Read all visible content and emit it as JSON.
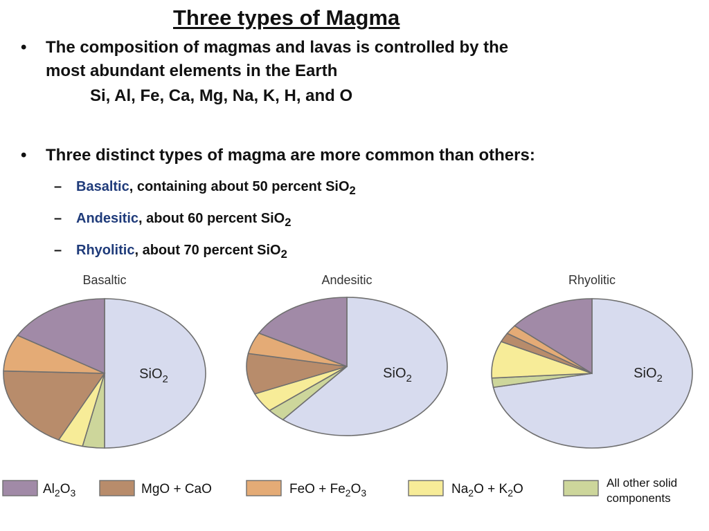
{
  "title": "Three types of Magma",
  "bullet1": {
    "line1": "The composition of magmas and lavas is controlled by the",
    "line2": "most abundant elements in the Earth",
    "elements": "Si, Al, Fe, Ca, Mg, Na, K, H, and O"
  },
  "bullet2": {
    "text": "Three distinct types of magma are more common than others:",
    "items": [
      {
        "name": "Basaltic",
        "rest": ", containing about 50 percent SiO",
        "sub": "2"
      },
      {
        "name": "Andesitic",
        "rest": ", about 60 percent SiO",
        "sub": "2"
      },
      {
        "name": "Rhyolitic",
        "rest": ", about 70 percent SiO",
        "sub": "2"
      }
    ]
  },
  "bullet_glyph": "•",
  "dash_glyph": "–",
  "chart_data": [
    {
      "type": "pie",
      "title": "Basaltic",
      "label": {
        "main": "SiO",
        "sub": "2"
      },
      "slices": [
        {
          "component": "SiO2",
          "value": 50,
          "color": "#d7dbee"
        },
        {
          "component": "All other solid components",
          "value": 3.5,
          "color": "#cdd69b"
        },
        {
          "component": "Na2O + K2O",
          "value": 4,
          "color": "#f7ec98"
        },
        {
          "component": "MgO + CaO",
          "value": 18,
          "color": "#b88c6b"
        },
        {
          "component": "FeO + Fe2O3",
          "value": 8,
          "color": "#e4ab76"
        },
        {
          "component": "Al2O3",
          "value": 16.5,
          "color": "#a18aa7"
        }
      ]
    },
    {
      "type": "pie",
      "title": "Andesitic",
      "label": {
        "main": "SiO",
        "sub": "2"
      },
      "slices": [
        {
          "component": "SiO2",
          "value": 61,
          "color": "#d7dbee"
        },
        {
          "component": "All other solid components",
          "value": 3,
          "color": "#cdd69b"
        },
        {
          "component": "Na2O + K2O",
          "value": 4.5,
          "color": "#f7ec98"
        },
        {
          "component": "MgO + CaO",
          "value": 9.5,
          "color": "#b88c6b"
        },
        {
          "component": "FeO + Fe2O3",
          "value": 5,
          "color": "#e4ab76"
        },
        {
          "component": "Al2O3",
          "value": 17,
          "color": "#a18aa7"
        }
      ]
    },
    {
      "type": "pie",
      "title": "Rhyolitic",
      "label": {
        "main": "SiO",
        "sub": "2"
      },
      "slices": [
        {
          "component": "SiO2",
          "value": 72,
          "color": "#d7dbee"
        },
        {
          "component": "All other solid components",
          "value": 2,
          "color": "#cdd69b"
        },
        {
          "component": "Na2O + K2O",
          "value": 8,
          "color": "#f7ec98"
        },
        {
          "component": "MgO + CaO",
          "value": 2,
          "color": "#b88c6b"
        },
        {
          "component": "FeO + Fe2O3",
          "value": 2,
          "color": "#e4ab76"
        },
        {
          "component": "Al2O3",
          "value": 14,
          "color": "#a18aa7"
        }
      ]
    }
  ],
  "legend": [
    {
      "parts": [
        [
          "Al",
          ""
        ],
        [
          "2",
          "sub"
        ],
        [
          "O",
          ""
        ],
        [
          "3",
          "sub"
        ]
      ],
      "color": "#a18aa7"
    },
    {
      "parts": [
        [
          "MgO + CaO",
          ""
        ]
      ],
      "color": "#b88c6b"
    },
    {
      "parts": [
        [
          "FeO + Fe",
          ""
        ],
        [
          "2",
          "sub"
        ],
        [
          "O",
          ""
        ],
        [
          "3",
          "sub"
        ]
      ],
      "color": "#e4ab76"
    },
    {
      "parts": [
        [
          "Na",
          ""
        ],
        [
          "2",
          "sub"
        ],
        [
          "O + K",
          ""
        ],
        [
          "2",
          "sub"
        ],
        [
          "O",
          ""
        ]
      ],
      "color": "#f7ec98"
    },
    {
      "lines": [
        "All other solid",
        "components"
      ],
      "color": "#cdd69b"
    }
  ],
  "outline_color": "#6f6f6f"
}
